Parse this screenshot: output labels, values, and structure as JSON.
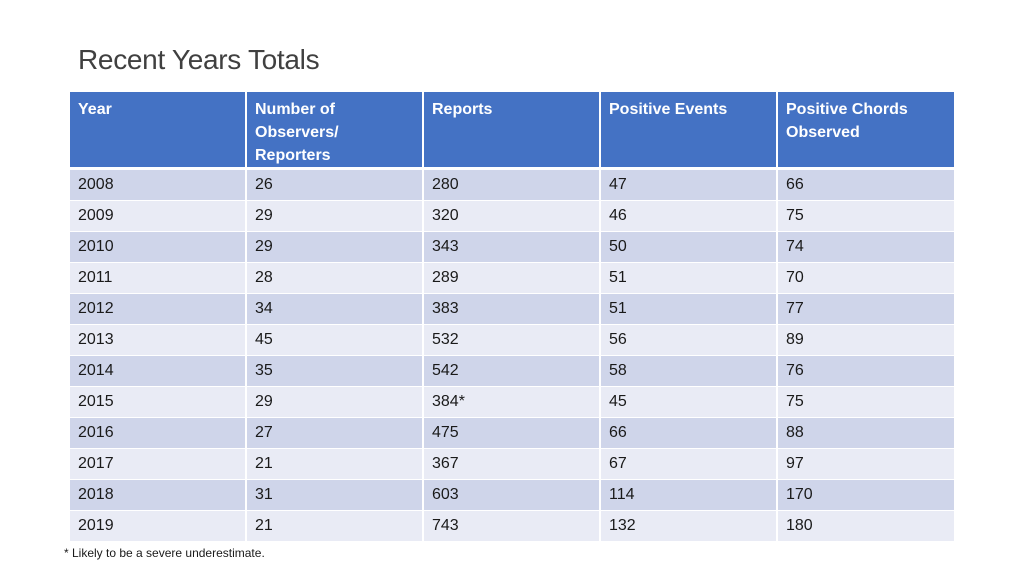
{
  "title": "Recent Years Totals",
  "table": {
    "headers": [
      "Year",
      "Number of Observers/ Reporters",
      "Reports",
      "Positive Events",
      "Positive Chords Observed"
    ],
    "rows": [
      [
        "2008",
        "26",
        "280",
        "47",
        "66"
      ],
      [
        "2009",
        "29",
        "320",
        "46",
        "75"
      ],
      [
        "2010",
        "29",
        "343",
        "50",
        "74"
      ],
      [
        "2011",
        "28",
        "289",
        "51",
        "70"
      ],
      [
        "2012",
        "34",
        "383",
        "51",
        "77"
      ],
      [
        "2013",
        "45",
        "532",
        "56",
        "89"
      ],
      [
        "2014",
        "35",
        "542",
        "58",
        "76"
      ],
      [
        "2015",
        "29",
        "384*",
        "45",
        "75"
      ],
      [
        "2016",
        "27",
        "475",
        "66",
        "88"
      ],
      [
        "2017",
        "21",
        "367",
        "67",
        "97"
      ],
      [
        "2018",
        "31",
        "603",
        "114",
        "170"
      ],
      [
        "2019",
        "21",
        "743",
        "132",
        "180"
      ]
    ]
  },
  "footnote": "* Likely to be a severe underestimate.",
  "colors": {
    "header_background": "#4472c4",
    "row_band_dark": "#cfd5ea",
    "row_band_light": "#e9ebf5",
    "title_text": "#404040"
  }
}
